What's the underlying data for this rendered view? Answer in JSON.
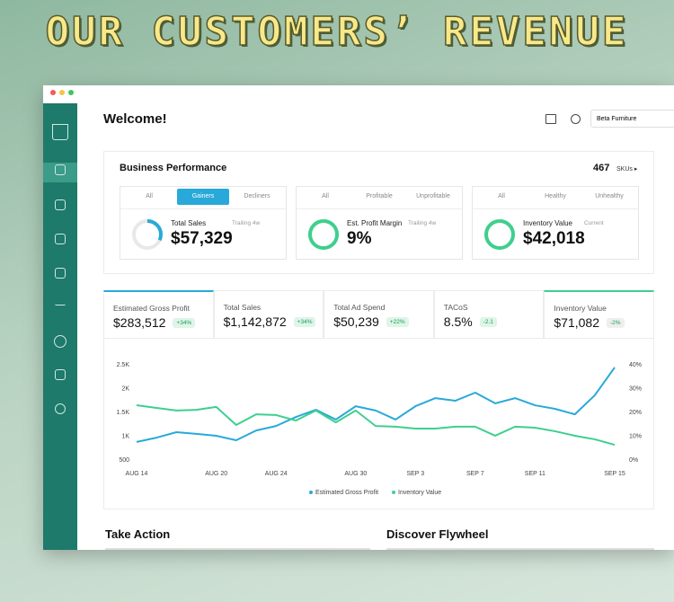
{
  "banner": {
    "title": "OUR CUSTOMERS’ REVENUE"
  },
  "header": {
    "welcome": "Welcome!",
    "store": "Beta Furniture"
  },
  "business_performance": {
    "title": "Business Performance",
    "sku_count": "467",
    "sku_label": "SKUs ▸",
    "panels": [
      {
        "tabs": [
          "All",
          "Gainers",
          "Decliners"
        ],
        "active_tab": 1,
        "label": "Total Sales",
        "period": "Trailing 4w",
        "value": "$57,329",
        "color": "#29a9d9"
      },
      {
        "tabs": [
          "All",
          "Profitable",
          "Unprofitable"
        ],
        "label": "Est. Profit Margin",
        "period": "Trailing 4w",
        "value": "9%",
        "color": "#3ecf8e"
      },
      {
        "tabs": [
          "All",
          "Healthy",
          "Unhealthy"
        ],
        "label": "Inventory Value",
        "period": "Current",
        "value": "$42,018",
        "color": "#3ecf8e"
      }
    ]
  },
  "kpis": [
    {
      "label": "Estimated Gross Profit",
      "value": "$283,512",
      "change": "+34%",
      "accent": "#29a9d9",
      "badge_color": "#def5e8"
    },
    {
      "label": "Total Sales",
      "value": "$1,142,872",
      "change": "+34%",
      "badge_color": "#def5e8"
    },
    {
      "label": "Total Ad Spend",
      "value": "$50,239",
      "change": "+22%",
      "badge_color": "#def5e8"
    },
    {
      "label": "TACoS",
      "value": "8.5%",
      "change": "-2.1",
      "badge_color": "#def5e8"
    },
    {
      "label": "Inventory Value",
      "value": "$71,082",
      "change": "-2%",
      "accent": "#3ecf8e",
      "badge_color": "#eeeeee"
    }
  ],
  "chart_data": {
    "type": "line",
    "categories": [
      "AUG 14",
      null,
      null,
      null,
      "AUG 20",
      null,
      null,
      "AUG 24",
      null,
      null,
      null,
      "AUG 30",
      null,
      null,
      "SEP 3",
      null,
      null,
      "SEP 7",
      null,
      null,
      "SEP 11",
      null,
      null,
      null,
      "SEP 15"
    ],
    "series": [
      {
        "name": "Estimated Gross Profit",
        "color": "#29a9d9",
        "values": [
          880,
          970,
          1085,
          1050,
          1010,
          915,
          1120,
          1215,
          1405,
          1555,
          1350,
          1630,
          1540,
          1350,
          1630,
          1800,
          1745,
          1915,
          1690,
          1800,
          1650,
          1575,
          1460,
          1860,
          2445
        ]
      },
      {
        "name": "Inventory Value",
        "color": "#3ecf8e",
        "axis": "y2",
        "values": [
          23,
          21.9,
          20.8,
          21.1,
          22.3,
          14.7,
          19.2,
          18.9,
          16.6,
          20.8,
          15.8,
          20.8,
          14.3,
          14,
          13.2,
          13.2,
          14,
          14,
          10.2,
          14,
          13.6,
          12.1,
          10.2,
          8.7,
          6.4
        ]
      }
    ],
    "ylim": [
      500,
      2500
    ],
    "yticks": [
      500,
      {
        "value": 1000,
        "label": "1K"
      },
      {
        "value": 1500,
        "label": "1.5K"
      },
      {
        "value": 2000,
        "label": "2K"
      },
      {
        "value": 2500,
        "label": "2.5K"
      }
    ],
    "y2lim": [
      0,
      40
    ],
    "y2ticks": [
      {
        "value": 0,
        "label": "0%"
      },
      {
        "value": 10,
        "label": "10%"
      },
      {
        "value": 20,
        "label": "20%"
      },
      {
        "value": 30,
        "label": "30%"
      },
      {
        "value": 40,
        "label": "40%"
      }
    ],
    "legend": "bottom"
  },
  "sections": [
    "Take Action",
    "Discover Flywheel"
  ]
}
